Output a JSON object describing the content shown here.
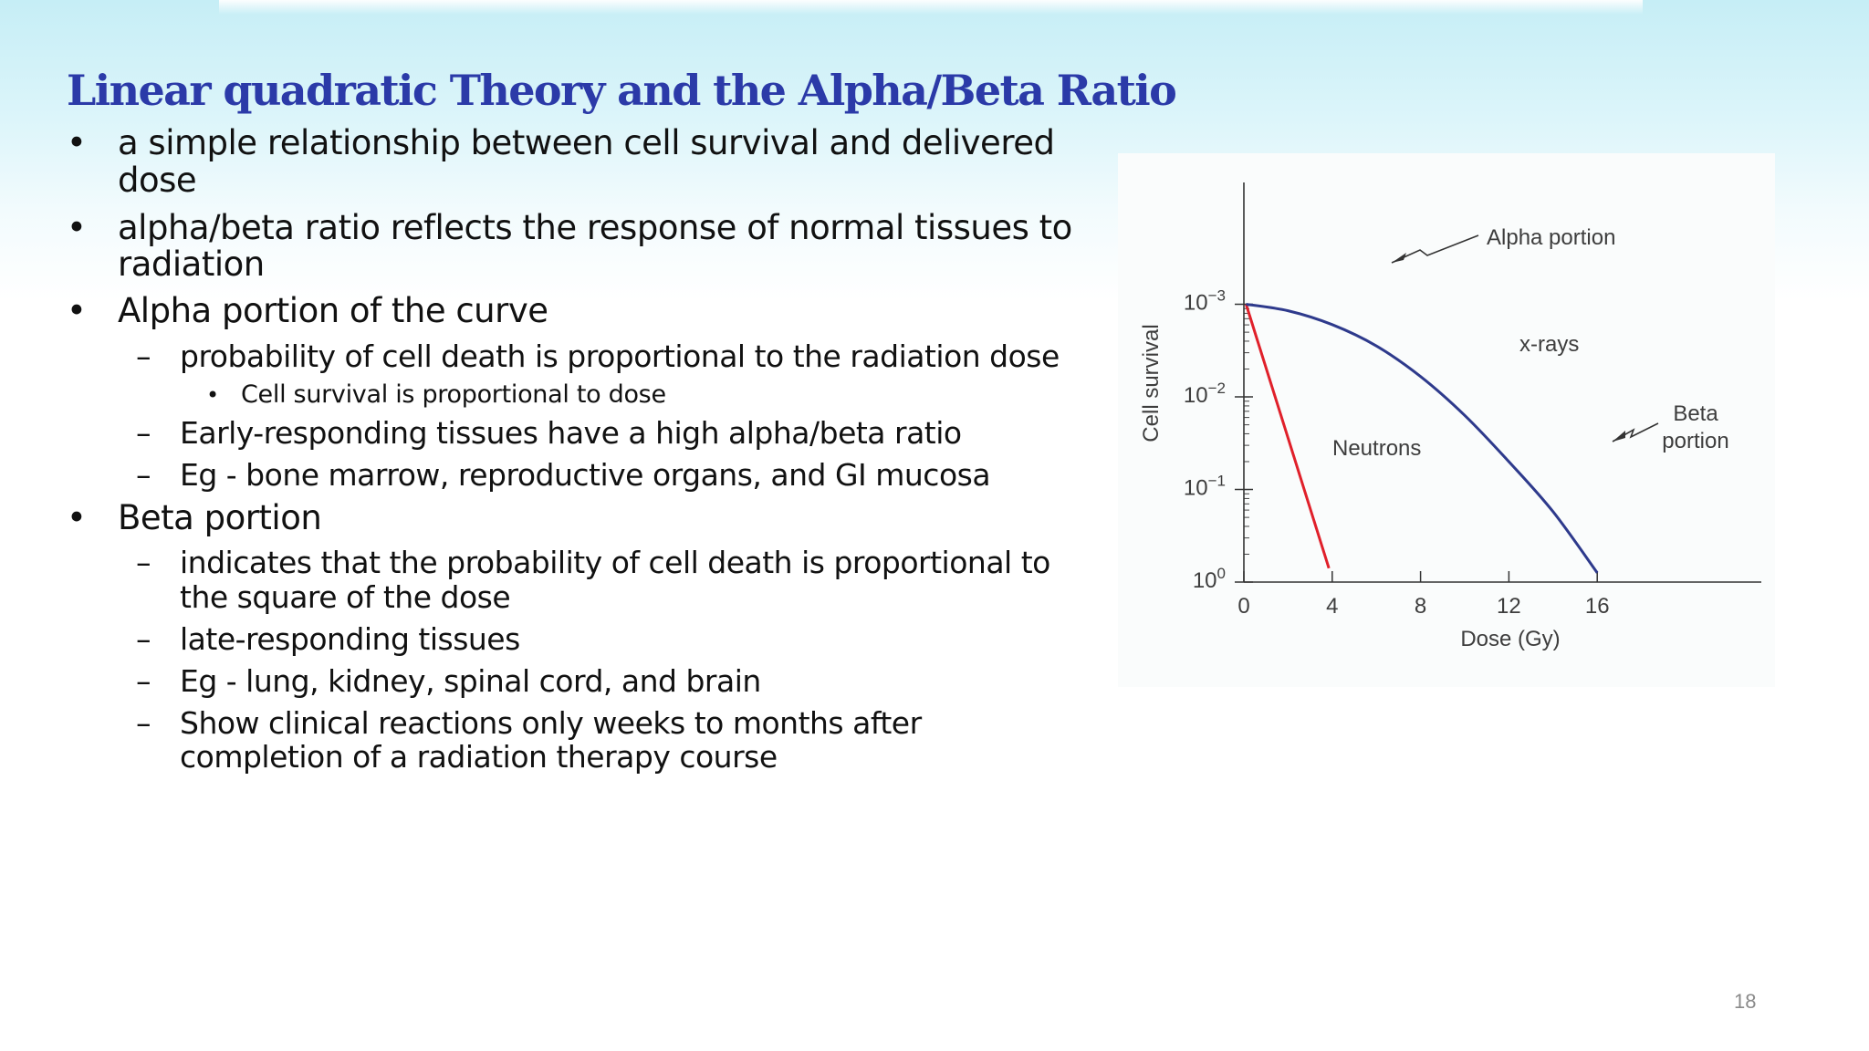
{
  "slide": {
    "title": "Linear quadratic Theory and the Alpha/Beta Ratio",
    "page_number": "18",
    "items": [
      {
        "level": 1,
        "marker": "•",
        "lines": [
          "a simple relationship between cell survival and delivered",
          "dose"
        ]
      },
      {
        "level": 1,
        "marker": "•",
        "lines": [
          "alpha/beta ratio reflects the response of normal tissues to",
          "radiation"
        ]
      },
      {
        "level": 1,
        "marker": "•",
        "lines": [
          "Alpha portion of the curve"
        ]
      },
      {
        "level": 2,
        "marker": "–",
        "lines": [
          "probability of cell death is proportional to the radiation dose"
        ]
      },
      {
        "level": 3,
        "marker": "•",
        "lines": [
          "Cell survival is proportional to dose"
        ]
      },
      {
        "level": 2,
        "marker": "–",
        "lines": [
          "Early-responding tissues have a high alpha/beta ratio"
        ]
      },
      {
        "level": 2,
        "marker": "–",
        "lines": [
          "Eg - bone marrow, reproductive organs, and GI mucosa"
        ]
      },
      {
        "level": 1,
        "marker": "•",
        "lines": [
          "Beta portion"
        ]
      },
      {
        "level": 2,
        "marker": "–",
        "lines": [
          "indicates that the probability of cell death is proportional to",
          "the square of the dose"
        ]
      },
      {
        "level": 2,
        "marker": "–",
        "lines": [
          "late-responding tissues"
        ]
      },
      {
        "level": 2,
        "marker": "–",
        "lines": [
          "Eg - lung, kidney, spinal cord, and brain"
        ]
      },
      {
        "level": 2,
        "marker": "–",
        "lines": [
          "Show clinical reactions only weeks to months after",
          "completion of a radiation therapy course"
        ]
      }
    ]
  },
  "chart_data": {
    "type": "line",
    "title": "",
    "xlabel": "Dose (Gy)",
    "ylabel": "Cell survival",
    "xlim": [
      0,
      18
    ],
    "x_ticks": [
      "0",
      "4",
      "8",
      "12",
      "16"
    ],
    "y_ticks": [
      {
        "base": "10",
        "exp": "0"
      },
      {
        "base": "10",
        "exp": "−1"
      },
      {
        "base": "10",
        "exp": "−2"
      },
      {
        "base": "10",
        "exp": "−3"
      }
    ],
    "annotations": {
      "alpha": "Alpha portion",
      "xrays": "x-rays",
      "beta_line1": "Beta",
      "beta_line2": "portion",
      "neutrons": "Neutrons"
    },
    "series": [
      {
        "name": "Neutrons",
        "color": "#e0202a",
        "x": [
          0.1,
          3.85
        ],
        "y": [
          3.0,
          0.15
        ]
      },
      {
        "name": "x-rays",
        "color": "#2e3a8c",
        "x": [
          0.1,
          2,
          4,
          6,
          8,
          10,
          12,
          14,
          16
        ],
        "y": [
          3.0,
          2.93,
          2.78,
          2.55,
          2.22,
          1.8,
          1.3,
          0.76,
          0.1
        ]
      }
    ]
  }
}
